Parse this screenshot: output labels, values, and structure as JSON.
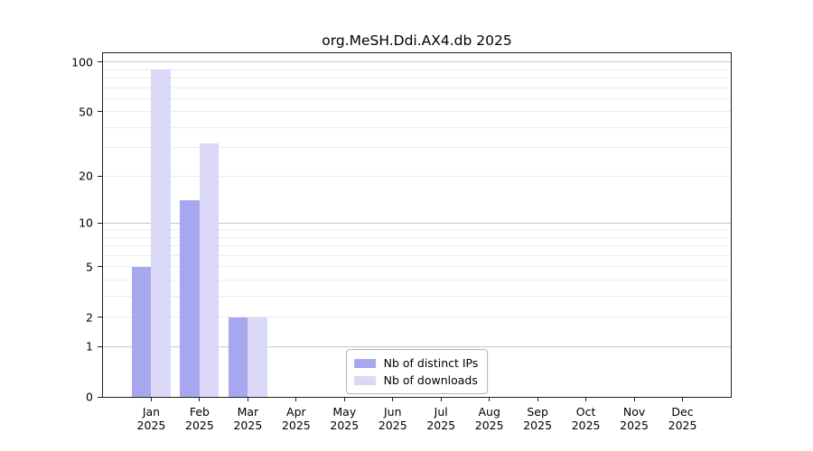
{
  "title": "org.MeSH.Ddi.AX4.db 2025",
  "colors": {
    "ips_bar": "#a7a7f0",
    "downloads_bar": "#d9d9f7",
    "grid_major": "#c6c6c6",
    "grid_minor": "#ececec",
    "axis": "#1f1f1f",
    "legend_border": "#b4b4b4"
  },
  "chart_data": {
    "type": "bar",
    "title": "org.MeSH.Ddi.AX4.db 2025",
    "xlabel": "",
    "ylabel": "",
    "categories": [
      {
        "label": "Jan",
        "sublabel": "2025"
      },
      {
        "label": "Feb",
        "sublabel": "2025"
      },
      {
        "label": "Mar",
        "sublabel": "2025"
      },
      {
        "label": "Apr",
        "sublabel": "2025"
      },
      {
        "label": "May",
        "sublabel": "2025"
      },
      {
        "label": "Jun",
        "sublabel": "2025"
      },
      {
        "label": "Jul",
        "sublabel": "2025"
      },
      {
        "label": "Aug",
        "sublabel": "2025"
      },
      {
        "label": "Sep",
        "sublabel": "2025"
      },
      {
        "label": "Oct",
        "sublabel": "2025"
      },
      {
        "label": "Nov",
        "sublabel": "2025"
      },
      {
        "label": "Dec",
        "sublabel": "2025"
      }
    ],
    "series": [
      {
        "name": "Nb of distinct IPs",
        "color": "#a7a7f0",
        "values": [
          5,
          14,
          2,
          0,
          0,
          0,
          0,
          0,
          0,
          0,
          0,
          0
        ]
      },
      {
        "name": "Nb of downloads",
        "color": "#d9d9f7",
        "values": [
          90,
          32,
          2,
          0,
          0,
          0,
          0,
          0,
          0,
          0,
          0,
          0
        ]
      }
    ],
    "y_axis": {
      "scale": "log1p",
      "max": 113.3,
      "ticks": [
        0,
        1,
        2,
        5,
        10,
        20,
        50,
        100
      ],
      "grid_major": [
        1,
        10,
        100
      ],
      "grid_minor": [
        2,
        3,
        4,
        5,
        6,
        7,
        8,
        9,
        20,
        30,
        40,
        50,
        60,
        70,
        80,
        90
      ]
    },
    "grid": true,
    "legend_position": "lower center"
  }
}
